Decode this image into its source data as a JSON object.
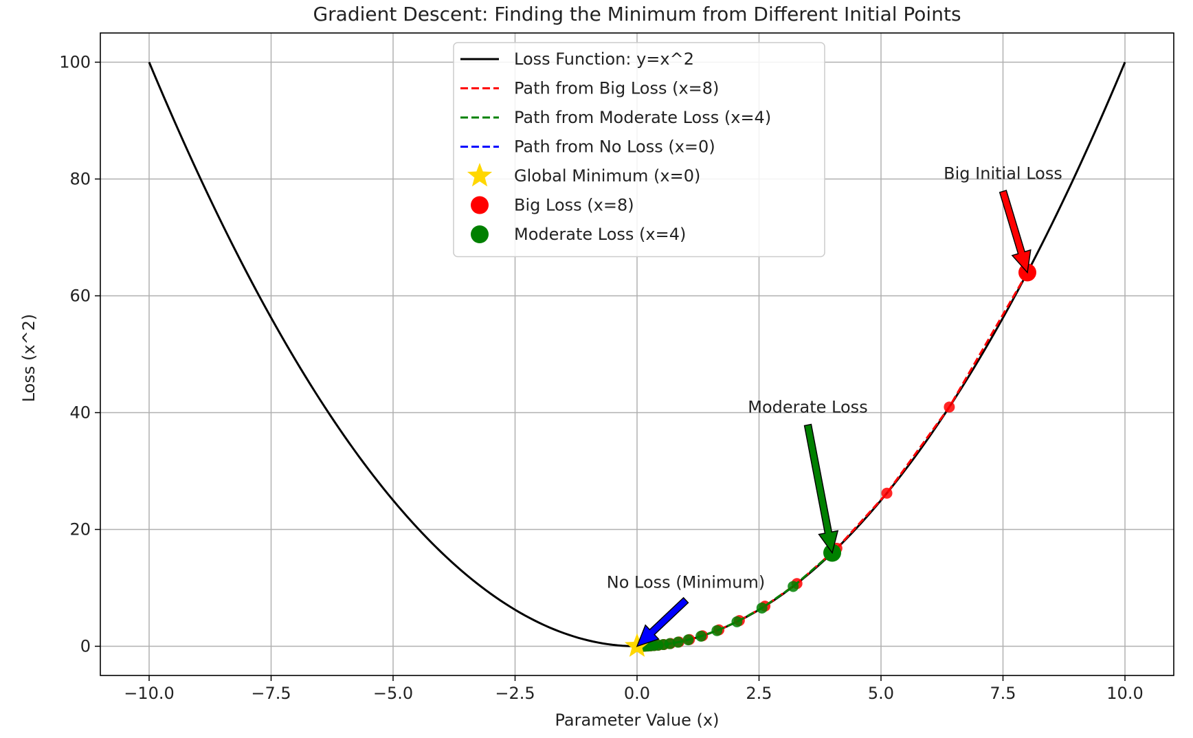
{
  "chart_data": {
    "type": "line",
    "title": "Gradient Descent: Finding the Minimum from Different Initial Points",
    "xlabel": "Parameter Value (x)",
    "ylabel": "Loss (x^2)",
    "xlim": [
      -11,
      11
    ],
    "ylim": [
      -5,
      105
    ],
    "grid": true,
    "legend_position": "top-center",
    "x_ticks": [
      -10.0,
      -7.5,
      -5.0,
      -2.5,
      0.0,
      2.5,
      5.0,
      7.5,
      10.0
    ],
    "x_tick_labels": [
      "−10.0",
      "−7.5",
      "−5.0",
      "−2.5",
      "0.0",
      "2.5",
      "5.0",
      "7.5",
      "10.0"
    ],
    "y_ticks": [
      0,
      20,
      40,
      60,
      80,
      100
    ],
    "y_tick_labels": [
      "0",
      "20",
      "40",
      "60",
      "80",
      "100"
    ],
    "loss_function": {
      "name": "Loss Function: y=x^2",
      "x_range": [
        -10,
        10
      ],
      "color": "#000000"
    },
    "series": [
      {
        "name": "Path from Big Loss (x=8)",
        "color": "#ff0000",
        "x": [
          8.0,
          6.4,
          5.12,
          4.096,
          3.277,
          2.621,
          2.097,
          1.678,
          1.342,
          1.074,
          0.859,
          0.687,
          0.55,
          0.44,
          0.352,
          0.281,
          0.225,
          0.18,
          0.144,
          0.115,
          0.092
        ],
        "y": [
          64.0,
          40.96,
          26.21,
          16.78,
          10.74,
          6.87,
          4.4,
          2.81,
          1.8,
          1.15,
          0.74,
          0.47,
          0.3,
          0.19,
          0.12,
          0.08,
          0.05,
          0.03,
          0.02,
          0.01,
          0.01
        ]
      },
      {
        "name": "Path from Moderate Loss (x=4)",
        "color": "#008000",
        "x": [
          4.0,
          3.2,
          2.56,
          2.048,
          1.638,
          1.311,
          1.049,
          0.839,
          0.671,
          0.537,
          0.429,
          0.344,
          0.275,
          0.22,
          0.176,
          0.141,
          0.113,
          0.09,
          0.072,
          0.058,
          0.046
        ],
        "y": [
          16.0,
          10.24,
          6.55,
          4.19,
          2.68,
          1.72,
          1.1,
          0.7,
          0.45,
          0.29,
          0.18,
          0.12,
          0.08,
          0.05,
          0.03,
          0.02,
          0.01,
          0.01,
          0.01,
          0.0,
          0.0
        ]
      },
      {
        "name": "Path from No Loss (x=0)",
        "color": "#0000ff",
        "x": [
          0.0,
          0.0
        ],
        "y": [
          0.0,
          0.0
        ]
      }
    ],
    "markers": [
      {
        "name": "Global Minimum (x=0)",
        "x": 0,
        "y": 0,
        "shape": "star",
        "color": "#ffd700"
      },
      {
        "name": "Big Loss (x=8)",
        "x": 8,
        "y": 64,
        "shape": "circle",
        "color": "#ff0000"
      },
      {
        "name": "Moderate Loss (x=4)",
        "x": 4,
        "y": 16,
        "shape": "circle",
        "color": "#008000"
      }
    ],
    "annotations": [
      {
        "text": "Big Initial Loss",
        "x": 8,
        "y": 64,
        "text_x": 7.5,
        "text_y": 80,
        "color": "#ff0000"
      },
      {
        "text": "Moderate Loss",
        "x": 4,
        "y": 16,
        "text_x": 3.5,
        "text_y": 40,
        "color": "#008000"
      },
      {
        "text": "No Loss (Minimum)",
        "x": 0,
        "y": 0,
        "text_x": 1.0,
        "text_y": 10,
        "color": "#0000ff"
      }
    ]
  }
}
